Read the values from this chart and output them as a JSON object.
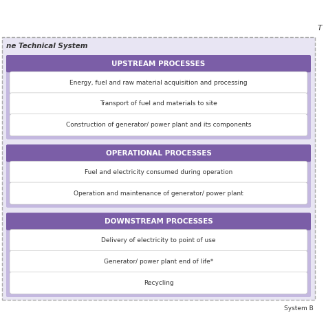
{
  "title_top_right": "T",
  "title_bottom_right": "System B",
  "label_top_left": "ne Technical System",
  "sections": [
    {
      "header": "UPSTREAM PROCESSES",
      "header_color": "#7B5EA7",
      "bg_color": "#C4B8E0",
      "items": [
        "Energy, fuel and raw material acquisition and processing",
        "Transport of fuel and materials to site",
        "Construction of generator/ power plant and its components"
      ]
    },
    {
      "header": "OPERATIONAL PROCESSES",
      "header_color": "#7B5EA7",
      "bg_color": "#C4B8E0",
      "items": [
        "Fuel and electricity consumed during operation",
        "Operation and maintenance of generator/ power plant"
      ]
    },
    {
      "header": "DOWNSTREAM PROCESSES",
      "header_color": "#7B5EA7",
      "bg_color": "#C4B8E0",
      "items": [
        "Delivery of electricity to point of use",
        "Generator/ power plant end of life*",
        "Recycling"
      ]
    }
  ],
  "outer_bg": "#E8E5F3",
  "pill_bg": "#FFFFFF",
  "pill_edge": "#BBBBBB",
  "header_text_color": "#FFFFFF",
  "item_text_color": "#333333",
  "header_fontsize": 7.5,
  "item_fontsize": 6.5,
  "label_fontsize": 7.5,
  "border_color": "#AAAAAA"
}
